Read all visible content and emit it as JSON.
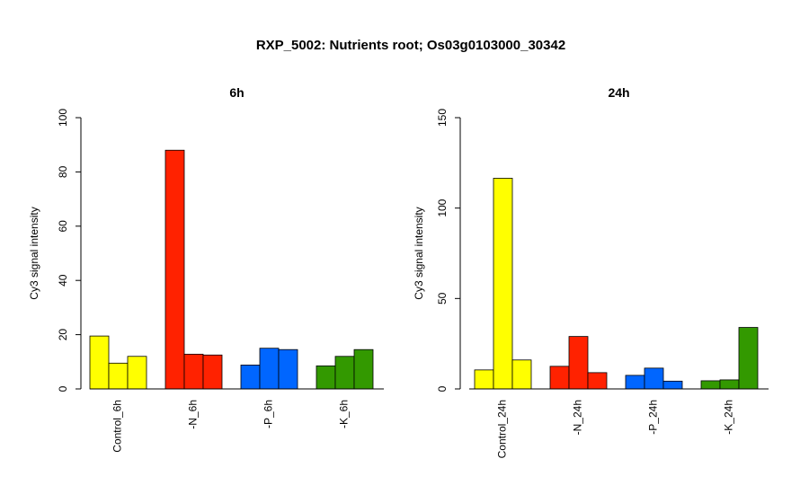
{
  "title": "RXP_5002: Nutrients root; Os03g0103000_30342",
  "chart_data": [
    {
      "type": "bar",
      "title": "6h",
      "ylabel": "Cy3 signal intensity",
      "ylim": [
        0,
        100
      ],
      "yticks": [
        0,
        20,
        40,
        60,
        80,
        100
      ],
      "groups": [
        {
          "label": "Control_6h",
          "color": "#ffff00",
          "values": [
            19.5,
            9.5,
            12
          ]
        },
        {
          "label": "-N_6h",
          "color": "#ff2200",
          "values": [
            88,
            12.8,
            12.5
          ]
        },
        {
          "label": "-P_6h",
          "color": "#0066ff",
          "values": [
            8.8,
            15,
            14.5
          ]
        },
        {
          "label": "-K_6h",
          "color": "#339900",
          "values": [
            8.5,
            12,
            14.5
          ]
        }
      ]
    },
    {
      "type": "bar",
      "title": "24h",
      "ylabel": "Cy3 signal intensity",
      "ylim": [
        0,
        150
      ],
      "yticks": [
        0,
        50,
        100,
        150
      ],
      "groups": [
        {
          "label": "Control_24h",
          "color": "#ffff00",
          "values": [
            10.5,
            116.5,
            16
          ]
        },
        {
          "label": "-N_24h",
          "color": "#ff2200",
          "values": [
            12.5,
            29,
            9
          ]
        },
        {
          "label": "-P_24h",
          "color": "#0066ff",
          "values": [
            7.5,
            11.5,
            4.3
          ]
        },
        {
          "label": "-K_24h",
          "color": "#339900",
          "values": [
            4.5,
            5,
            34
          ]
        }
      ]
    }
  ]
}
